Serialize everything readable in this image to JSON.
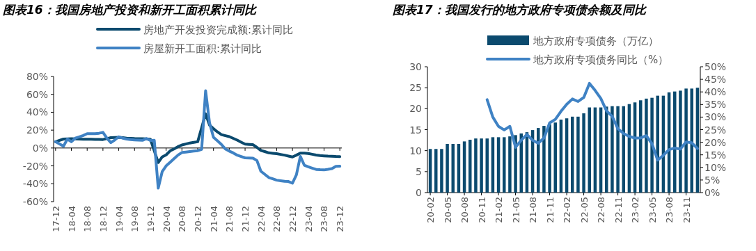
{
  "chart_data": [
    {
      "type": "line",
      "title": "图表16：我国房地产投资和新开工面积累计同比",
      "legend": "top",
      "ylim": [
        -60,
        80
      ],
      "yticks": [
        {
          "value": -60,
          "label": "-60%"
        },
        {
          "value": -40,
          "label": "-40%"
        },
        {
          "value": -20,
          "label": "-20%"
        },
        {
          "value": 0,
          "label": "0%"
        },
        {
          "value": 20,
          "label": "20%"
        },
        {
          "value": 40,
          "label": "40%"
        },
        {
          "value": 60,
          "label": "60%"
        },
        {
          "value": 80,
          "label": "80%"
        }
      ],
      "categories": [
        "17-12",
        null,
        null,
        null,
        "18-04",
        null,
        null,
        null,
        "18-08",
        null,
        null,
        null,
        "18-12",
        null,
        null,
        null,
        "19-04",
        null,
        null,
        null,
        "19-08",
        null,
        null,
        null,
        "19-12",
        null,
        null,
        null,
        "20-04",
        null,
        null,
        null,
        "20-08",
        null,
        null,
        null,
        "20-12",
        null,
        null,
        null,
        "21-04",
        null,
        null,
        null,
        "21-08",
        null,
        null,
        null,
        "21-12",
        null,
        null,
        null,
        "22-04",
        null,
        null,
        null,
        "22-08",
        null,
        null,
        null,
        "22-12",
        null,
        null,
        null,
        "23-04",
        null,
        null,
        null,
        "23-08",
        null,
        null,
        null,
        "23-12"
      ],
      "series": [
        {
          "name": "房地产开发投资完成额:累计同比",
          "color": "#0b4a6e",
          "values": [
            7,
            8.5,
            10,
            10.2,
            10.3,
            10.2,
            10,
            9.9,
            9.9,
            9.8,
            9.7,
            9.6,
            9.5,
            10.5,
            11.6,
            11.8,
            11.9,
            11.5,
            11,
            10.8,
            10.5,
            10.4,
            10.3,
            10.2,
            9.9,
            -3.2,
            -16.3,
            -10,
            -7.7,
            -3.3,
            -1,
            1.5,
            3.4,
            4.5,
            5.6,
            6.3,
            7,
            22.6,
            38.3,
            25.6,
            21.6,
            18,
            15,
            13.8,
            12.7,
            10.8,
            8.8,
            6.5,
            4.4,
            4,
            3.7,
            0.7,
            -2.7,
            -4,
            -5.4,
            -5.9,
            -6.4,
            -7.2,
            -8,
            -9,
            -10,
            -8,
            -5.7,
            -5.8,
            -6.2,
            -7,
            -7.9,
            -8.4,
            -8.8,
            -9.1,
            -9.3,
            -9.5,
            -9.6
          ]
        },
        {
          "name": "房屋新开工面积:累计同比",
          "color": "#3f82c4",
          "values": [
            7,
            4.5,
            2,
            10,
            7,
            11,
            12.5,
            14,
            16,
            16,
            16,
            16.5,
            17.5,
            11,
            6,
            9,
            12.5,
            11,
            10,
            9.5,
            9,
            8.8,
            8.6,
            10.5,
            8.5,
            8.6,
            -44.9,
            -26.5,
            -20,
            -16,
            -12,
            -8,
            -5,
            -4.5,
            -4,
            -3.5,
            -3,
            -1.5,
            64,
            28,
            12,
            8,
            4,
            -1,
            -3.5,
            -5.5,
            -8,
            -9.5,
            -11,
            -11.2,
            -11.4,
            -14,
            -26,
            -29.5,
            -33,
            -34.5,
            -36,
            -36.6,
            -37.2,
            -37.5,
            -39.4,
            -30,
            -9.4,
            -19.2,
            -21,
            -22.5,
            -24,
            -24.3,
            -24.5,
            -23.8,
            -23,
            -20.5,
            -20.4
          ]
        }
      ]
    },
    {
      "type": "bar",
      "title": "图表17：我国发行的地方政府专项债余额及同比",
      "legend": "top",
      "ylim": [
        0,
        30
      ],
      "yticks": [
        0,
        5,
        10,
        15,
        20,
        25,
        30
      ],
      "y2lim": [
        0,
        50
      ],
      "y2ticks": [
        {
          "value": 0,
          "label": "0%"
        },
        {
          "value": 5,
          "label": "5%"
        },
        {
          "value": 10,
          "label": "10%"
        },
        {
          "value": 15,
          "label": "15%"
        },
        {
          "value": 20,
          "label": "20%"
        },
        {
          "value": 25,
          "label": "25%"
        },
        {
          "value": 30,
          "label": "30%"
        },
        {
          "value": 35,
          "label": "35%"
        },
        {
          "value": 40,
          "label": "40%"
        },
        {
          "value": 45,
          "label": "45%"
        },
        {
          "value": 50,
          "label": "50%"
        }
      ],
      "categories": [
        "20-02",
        null,
        null,
        "20-05",
        null,
        null,
        "20-08",
        null,
        null,
        "20-11",
        null,
        null,
        "21-02",
        null,
        null,
        "21-05",
        null,
        null,
        "21-08",
        null,
        null,
        "21-11",
        null,
        null,
        "22-02",
        null,
        null,
        "22-05",
        null,
        null,
        "22-08",
        null,
        null,
        "22-11",
        null,
        null,
        "23-02",
        null,
        null,
        "23-05",
        null,
        null,
        "23-08",
        null,
        null,
        "23-11",
        null,
        null
      ],
      "series": [
        {
          "name": "地方政府专项债务（万亿）",
          "color": "#0b4a6e",
          "values": [
            10.4,
            10.4,
            10.4,
            11.6,
            11.6,
            11.6,
            12.2,
            12.6,
            12.9,
            12.9,
            12.9,
            13.2,
            13.2,
            13.2,
            13.4,
            13.7,
            14.1,
            14.4,
            14.9,
            15.4,
            15.9,
            16.3,
            16.7,
            17.4,
            17.7,
            18.1,
            18.1,
            18.9,
            20.3,
            20.3,
            20.3,
            20.5,
            20.6,
            20.6,
            20.6,
            21.1,
            21.5,
            22.0,
            22.4,
            22.6,
            23.1,
            23.1,
            23.9,
            24.1,
            24.3,
            24.8,
            24.8,
            25.0
          ]
        },
        {
          "name": "地方政府专项债务同比（%）",
          "type": "line",
          "axis": "y2",
          "color": "#3f82c4",
          "values": [
            null,
            null,
            null,
            null,
            null,
            null,
            null,
            null,
            null,
            null,
            36.9,
            30.0,
            26.3,
            24.9,
            26.3,
            18.0,
            20.8,
            23.1,
            20.8,
            19.6,
            21.7,
            27.7,
            29.1,
            32.3,
            35.1,
            37.2,
            36.2,
            37.8,
            43.4,
            40.6,
            37.4,
            32.5,
            30.3,
            25.4,
            23.5,
            22.3,
            21.7,
            21.7,
            22.6,
            19.4,
            12.9,
            14.8,
            17.1,
            17.7,
            17.3,
            20.1,
            19.8,
            17.5
          ]
        }
      ]
    }
  ]
}
